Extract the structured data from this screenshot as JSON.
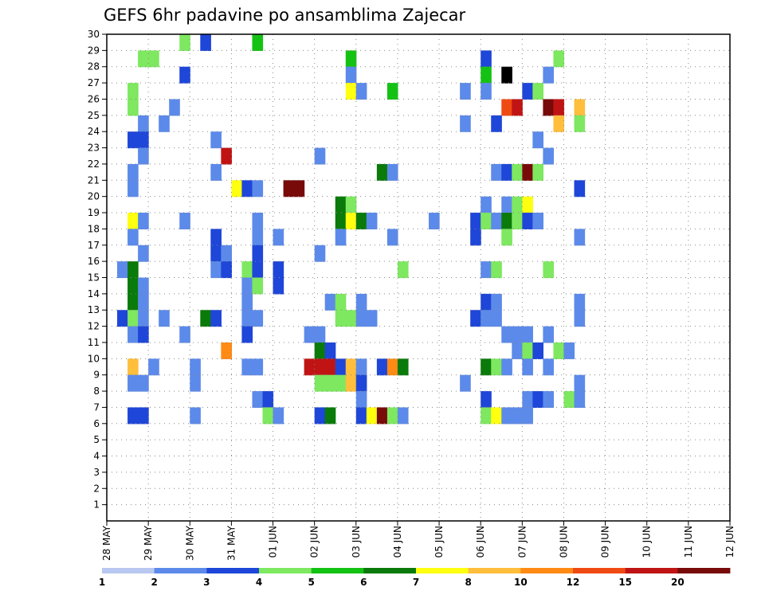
{
  "chart_data": {
    "type": "heatmap",
    "title": "GEFS 6hr padavine po ansamblima Zajecar",
    "xlabel": "",
    "ylabel": "",
    "x_tick_labels": [
      "28 MAY",
      "29 MAY",
      "30 MAY",
      "31 MAY",
      "01 JUN",
      "02 JUN",
      "03 JUN",
      "04 JUN",
      "05 JUN",
      "06 JUN",
      "07 JUN",
      "08 JUN",
      "09 JUN",
      "10 JUN",
      "11 JUN",
      "12 JUN"
    ],
    "y_members": [
      1,
      2,
      3,
      4,
      5,
      6,
      7,
      8,
      9,
      10,
      11,
      12,
      13,
      14,
      15,
      16,
      17,
      18,
      19,
      20,
      21,
      22,
      23,
      24,
      25,
      26,
      27,
      28,
      29,
      30
    ],
    "ylim": [
      0,
      30
    ],
    "time_steps_per_day": 4,
    "n_time_steps": 60,
    "grid": "dotted",
    "colorbar_labels": [
      "1",
      "2",
      "3",
      "4",
      "5",
      "6",
      "7",
      "8",
      "10",
      "12",
      "15",
      "20"
    ],
    "colorbar_colors": [
      "#b8c8f0",
      "#5c8aea",
      "#1e46d8",
      "#7ee860",
      "#14c214",
      "#0a7a0a",
      "#ffff10",
      "#ffbe3c",
      "#ff8a14",
      "#f04a14",
      "#c01414",
      "#780a0a"
    ],
    "cells": [
      [
        7,
        30,
        3
      ],
      [
        9,
        30,
        2
      ],
      [
        14,
        30,
        4
      ],
      [
        3,
        29,
        3
      ],
      [
        4,
        29,
        3
      ],
      [
        23,
        29,
        4
      ],
      [
        36,
        29,
        2
      ],
      [
        43,
        29,
        3
      ],
      [
        7,
        28,
        2
      ],
      [
        23,
        28,
        1
      ],
      [
        36,
        28,
        4
      ],
      [
        38,
        28,
        12
      ],
      [
        42,
        28,
        1
      ],
      [
        2,
        27,
        3
      ],
      [
        23,
        27,
        6
      ],
      [
        24,
        27,
        1
      ],
      [
        27,
        27,
        4
      ],
      [
        34,
        27,
        1
      ],
      [
        36,
        27,
        1
      ],
      [
        40,
        27,
        2
      ],
      [
        41,
        27,
        3
      ],
      [
        2,
        26,
        3
      ],
      [
        6,
        26,
        1
      ],
      [
        38,
        26,
        9
      ],
      [
        39,
        26,
        10
      ],
      [
        42,
        26,
        11
      ],
      [
        43,
        26,
        10
      ],
      [
        45,
        26,
        7
      ],
      [
        3,
        25,
        1
      ],
      [
        5,
        25,
        1
      ],
      [
        34,
        25,
        1
      ],
      [
        37,
        25,
        2
      ],
      [
        43,
        25,
        7
      ],
      [
        45,
        25,
        3
      ],
      [
        2,
        24,
        2
      ],
      [
        3,
        24,
        2
      ],
      [
        10,
        24,
        1
      ],
      [
        41,
        24,
        1
      ],
      [
        3,
        23,
        1
      ],
      [
        11,
        23,
        10
      ],
      [
        20,
        23,
        1
      ],
      [
        42,
        23,
        1
      ],
      [
        2,
        22,
        1
      ],
      [
        10,
        22,
        1
      ],
      [
        26,
        22,
        5
      ],
      [
        27,
        22,
        1
      ],
      [
        37,
        22,
        1
      ],
      [
        38,
        22,
        2
      ],
      [
        39,
        22,
        3
      ],
      [
        40,
        22,
        11
      ],
      [
        41,
        22,
        3
      ],
      [
        2,
        21,
        1
      ],
      [
        12,
        21,
        6
      ],
      [
        13,
        21,
        2
      ],
      [
        14,
        21,
        1
      ],
      [
        17,
        21,
        11
      ],
      [
        18,
        21,
        11
      ],
      [
        45,
        21,
        2
      ],
      [
        22,
        20,
        5
      ],
      [
        23,
        20,
        3
      ],
      [
        36,
        20,
        1
      ],
      [
        38,
        20,
        1
      ],
      [
        39,
        20,
        3
      ],
      [
        40,
        20,
        6
      ],
      [
        2,
        19,
        6
      ],
      [
        3,
        19,
        1
      ],
      [
        7,
        19,
        1
      ],
      [
        14,
        19,
        1
      ],
      [
        22,
        19,
        5
      ],
      [
        23,
        19,
        6
      ],
      [
        24,
        19,
        5
      ],
      [
        25,
        19,
        1
      ],
      [
        31,
        19,
        1
      ],
      [
        35,
        19,
        2
      ],
      [
        36,
        19,
        3
      ],
      [
        37,
        19,
        1
      ],
      [
        38,
        19,
        5
      ],
      [
        39,
        19,
        3
      ],
      [
        40,
        19,
        2
      ],
      [
        41,
        19,
        1
      ],
      [
        2,
        18,
        1
      ],
      [
        10,
        18,
        2
      ],
      [
        14,
        18,
        1
      ],
      [
        16,
        18,
        1
      ],
      [
        22,
        18,
        1
      ],
      [
        27,
        18,
        1
      ],
      [
        35,
        18,
        2
      ],
      [
        38,
        18,
        3
      ],
      [
        45,
        18,
        1
      ],
      [
        3,
        17,
        1
      ],
      [
        10,
        17,
        2
      ],
      [
        11,
        17,
        1
      ],
      [
        14,
        17,
        2
      ],
      [
        20,
        17,
        1
      ],
      [
        1,
        16,
        1
      ],
      [
        2,
        16,
        5
      ],
      [
        10,
        16,
        1
      ],
      [
        11,
        16,
        2
      ],
      [
        13,
        16,
        3
      ],
      [
        14,
        16,
        2
      ],
      [
        16,
        16,
        2
      ],
      [
        28,
        16,
        3
      ],
      [
        36,
        16,
        1
      ],
      [
        37,
        16,
        3
      ],
      [
        42,
        16,
        3
      ],
      [
        2,
        15,
        5
      ],
      [
        3,
        15,
        1
      ],
      [
        13,
        15,
        1
      ],
      [
        14,
        15,
        3
      ],
      [
        16,
        15,
        2
      ],
      [
        2,
        14,
        5
      ],
      [
        3,
        14,
        1
      ],
      [
        13,
        14,
        1
      ],
      [
        21,
        14,
        1
      ],
      [
        22,
        14,
        3
      ],
      [
        24,
        14,
        1
      ],
      [
        36,
        14,
        2
      ],
      [
        37,
        14,
        1
      ],
      [
        45,
        14,
        1
      ],
      [
        1,
        13,
        2
      ],
      [
        2,
        13,
        3
      ],
      [
        3,
        13,
        1
      ],
      [
        5,
        13,
        1
      ],
      [
        9,
        13,
        5
      ],
      [
        10,
        13,
        2
      ],
      [
        13,
        13,
        1
      ],
      [
        14,
        13,
        1
      ],
      [
        22,
        13,
        3
      ],
      [
        23,
        13,
        3
      ],
      [
        24,
        13,
        1
      ],
      [
        25,
        13,
        1
      ],
      [
        35,
        13,
        2
      ],
      [
        36,
        13,
        1
      ],
      [
        37,
        13,
        1
      ],
      [
        45,
        13,
        1
      ],
      [
        2,
        12,
        1
      ],
      [
        3,
        12,
        2
      ],
      [
        7,
        12,
        1
      ],
      [
        13,
        12,
        2
      ],
      [
        19,
        12,
        1
      ],
      [
        20,
        12,
        1
      ],
      [
        38,
        12,
        1
      ],
      [
        39,
        12,
        1
      ],
      [
        40,
        12,
        1
      ],
      [
        42,
        12,
        1
      ],
      [
        11,
        11,
        8
      ],
      [
        20,
        11,
        5
      ],
      [
        21,
        11,
        2
      ],
      [
        39,
        11,
        1
      ],
      [
        40,
        11,
        3
      ],
      [
        41,
        11,
        2
      ],
      [
        43,
        11,
        3
      ],
      [
        44,
        11,
        1
      ],
      [
        2,
        10,
        7
      ],
      [
        4,
        10,
        1
      ],
      [
        8,
        10,
        1
      ],
      [
        13,
        10,
        1
      ],
      [
        14,
        10,
        1
      ],
      [
        19,
        10,
        10
      ],
      [
        20,
        10,
        10
      ],
      [
        21,
        10,
        10
      ],
      [
        22,
        10,
        2
      ],
      [
        23,
        10,
        7
      ],
      [
        24,
        10,
        1
      ],
      [
        26,
        10,
        2
      ],
      [
        27,
        10,
        8
      ],
      [
        28,
        10,
        5
      ],
      [
        36,
        10,
        5
      ],
      [
        37,
        10,
        3
      ],
      [
        38,
        10,
        1
      ],
      [
        40,
        10,
        1
      ],
      [
        42,
        10,
        1
      ],
      [
        2,
        9,
        1
      ],
      [
        3,
        9,
        1
      ],
      [
        8,
        9,
        1
      ],
      [
        20,
        9,
        3
      ],
      [
        21,
        9,
        3
      ],
      [
        22,
        9,
        3
      ],
      [
        23,
        9,
        7
      ],
      [
        24,
        9,
        2
      ],
      [
        34,
        9,
        1
      ],
      [
        45,
        9,
        1
      ],
      [
        14,
        8,
        1
      ],
      [
        15,
        8,
        2
      ],
      [
        24,
        8,
        1
      ],
      [
        36,
        8,
        2
      ],
      [
        40,
        8,
        1
      ],
      [
        41,
        8,
        2
      ],
      [
        42,
        8,
        1
      ],
      [
        44,
        8,
        3
      ],
      [
        45,
        8,
        1
      ],
      [
        2,
        7,
        2
      ],
      [
        3,
        7,
        2
      ],
      [
        8,
        7,
        1
      ],
      [
        15,
        7,
        3
      ],
      [
        16,
        7,
        1
      ],
      [
        20,
        7,
        2
      ],
      [
        21,
        7,
        5
      ],
      [
        24,
        7,
        2
      ],
      [
        25,
        7,
        6
      ],
      [
        26,
        7,
        11
      ],
      [
        27,
        7,
        3
      ],
      [
        28,
        7,
        1
      ],
      [
        36,
        7,
        3
      ],
      [
        37,
        7,
        6
      ],
      [
        38,
        7,
        1
      ],
      [
        39,
        7,
        1
      ],
      [
        40,
        7,
        1
      ]
    ]
  }
}
